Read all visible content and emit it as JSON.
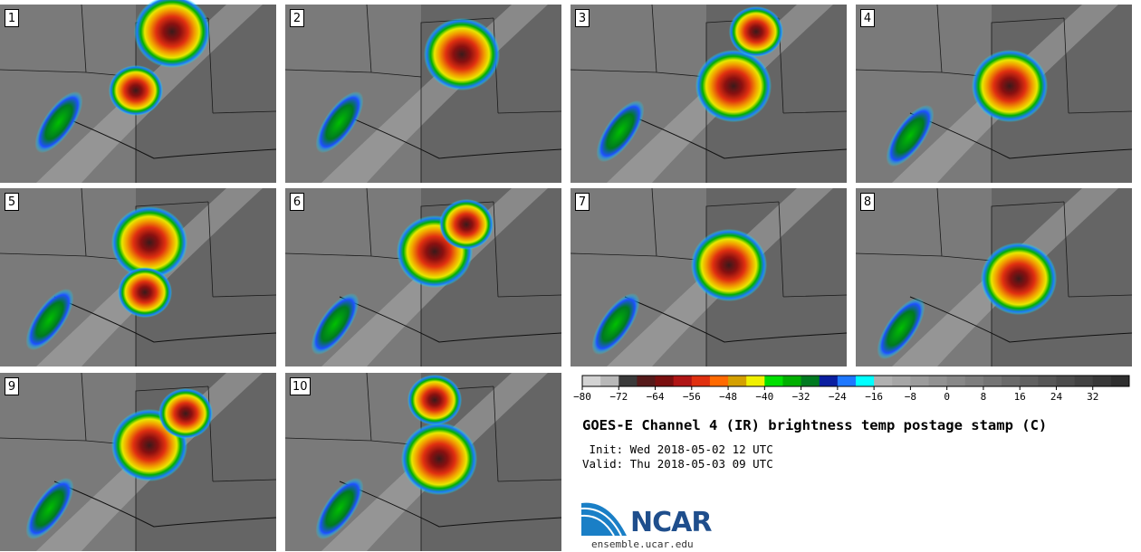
{
  "panels": [
    {
      "label": "1"
    },
    {
      "label": "2"
    },
    {
      "label": "3"
    },
    {
      "label": "4"
    },
    {
      "label": "5"
    },
    {
      "label": "6"
    },
    {
      "label": "7"
    },
    {
      "label": "8"
    },
    {
      "label": "9"
    },
    {
      "label": "10"
    }
  ],
  "colorbar": {
    "min": -80,
    "max": 40,
    "step": 4,
    "tick_labels": [
      "-80",
      "-72",
      "-64",
      "-56",
      "-48",
      "-40",
      "-32",
      "-24",
      "-16",
      "-8",
      "0",
      "8",
      "16",
      "24",
      "32"
    ],
    "colors": [
      "#d3d3d3",
      "#b8b8b8",
      "#3a3a3a",
      "#551a1a",
      "#7a0f0f",
      "#b01515",
      "#e03010",
      "#ff6a00",
      "#d4a000",
      "#f0f000",
      "#00e000",
      "#00b000",
      "#007a20",
      "#0a1ea0",
      "#1e78ff",
      "#00ffff",
      "#b0b0b0",
      "#a6a6a6",
      "#9c9c9c",
      "#929292",
      "#888888",
      "#7e7e7e",
      "#747474",
      "#6a6a6a",
      "#606060",
      "#565656",
      "#4c4c4c",
      "#424242",
      "#383838",
      "#2e2e2e"
    ]
  },
  "title": "GOES-E Channel 4 (IR) brightness temp postage stamp (C)",
  "init_text": " Init: Wed 2018-05-02 12 UTC",
  "valid_text": "Valid: Thu 2018-05-03 09 UTC",
  "logo_text": "NCAR",
  "url_text": "ensemble.ucar.edu"
}
